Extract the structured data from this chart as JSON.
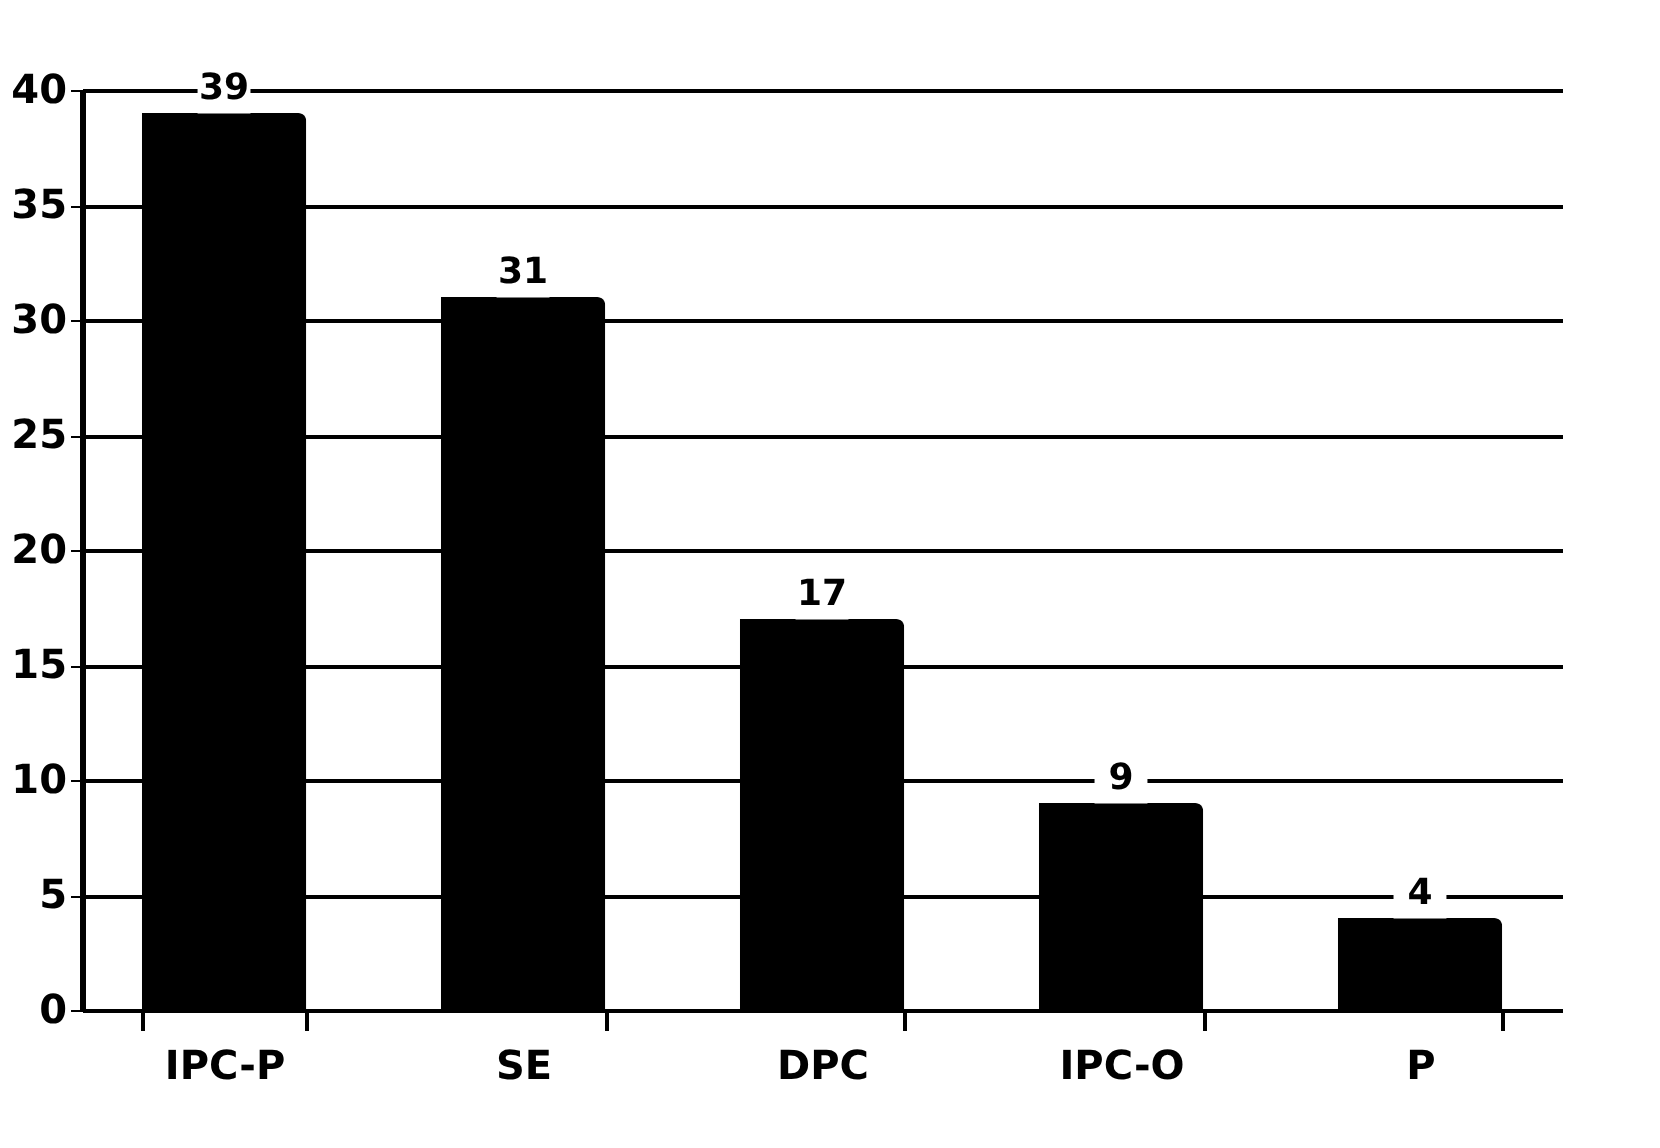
{
  "chart_data": {
    "type": "bar",
    "categories": [
      "IPC-P",
      "SE",
      "DPC",
      "IPC-O",
      "P"
    ],
    "values": [
      39,
      31,
      17,
      9,
      4
    ],
    "color": "#000000",
    "ylim": [
      0,
      40
    ],
    "yticks": [
      0,
      5,
      10,
      15,
      20,
      25,
      30,
      35,
      40
    ],
    "grid": "y",
    "data_labels": true
  }
}
